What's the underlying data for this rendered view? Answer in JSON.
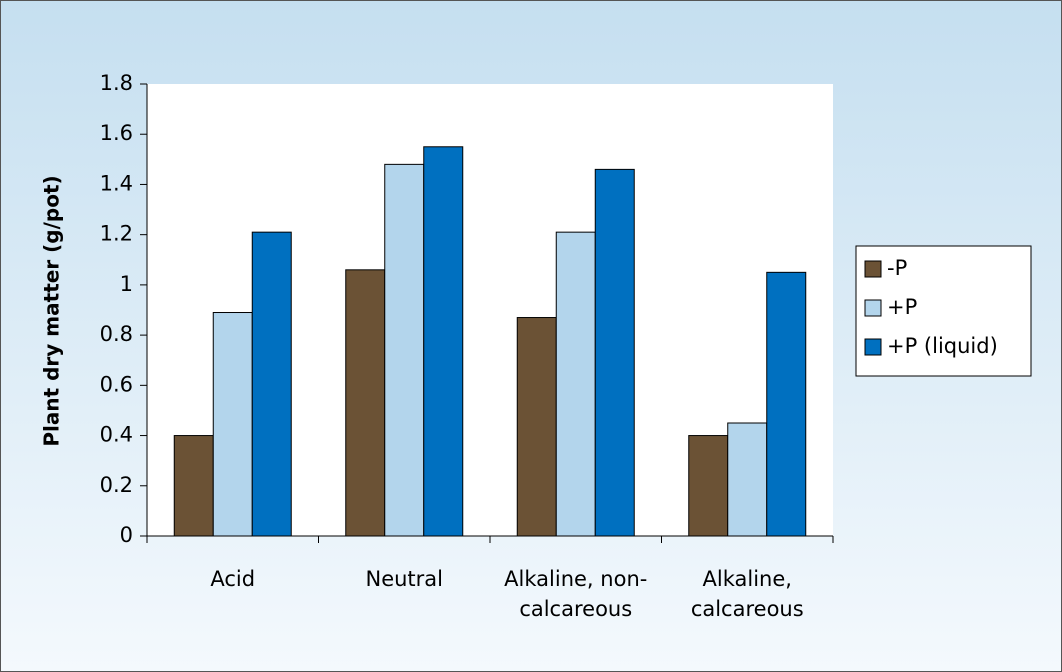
{
  "chart_data": {
    "type": "bar",
    "y_label": "Plant dry matter (g/pot)",
    "categories": [
      "Acid",
      "Neutral",
      "Alkaline, non-calcareous",
      "Alkaline, calcareous"
    ],
    "series": [
      {
        "name": "-P",
        "color": "#6b5235",
        "values": [
          0.4,
          1.06,
          0.87,
          0.4
        ]
      },
      {
        "name": "+P",
        "color": "#b3d5ec",
        "values": [
          0.89,
          1.48,
          1.21,
          0.45
        ]
      },
      {
        "name": "+P (liquid)",
        "color": "#0070c0",
        "values": [
          1.21,
          1.55,
          1.46,
          1.05
        ]
      }
    ],
    "ylim": [
      0,
      1.8
    ],
    "yticks": [
      0,
      0.2,
      0.4,
      0.6,
      0.8,
      1,
      1.2,
      1.4,
      1.6,
      1.8
    ],
    "legend": "right"
  }
}
